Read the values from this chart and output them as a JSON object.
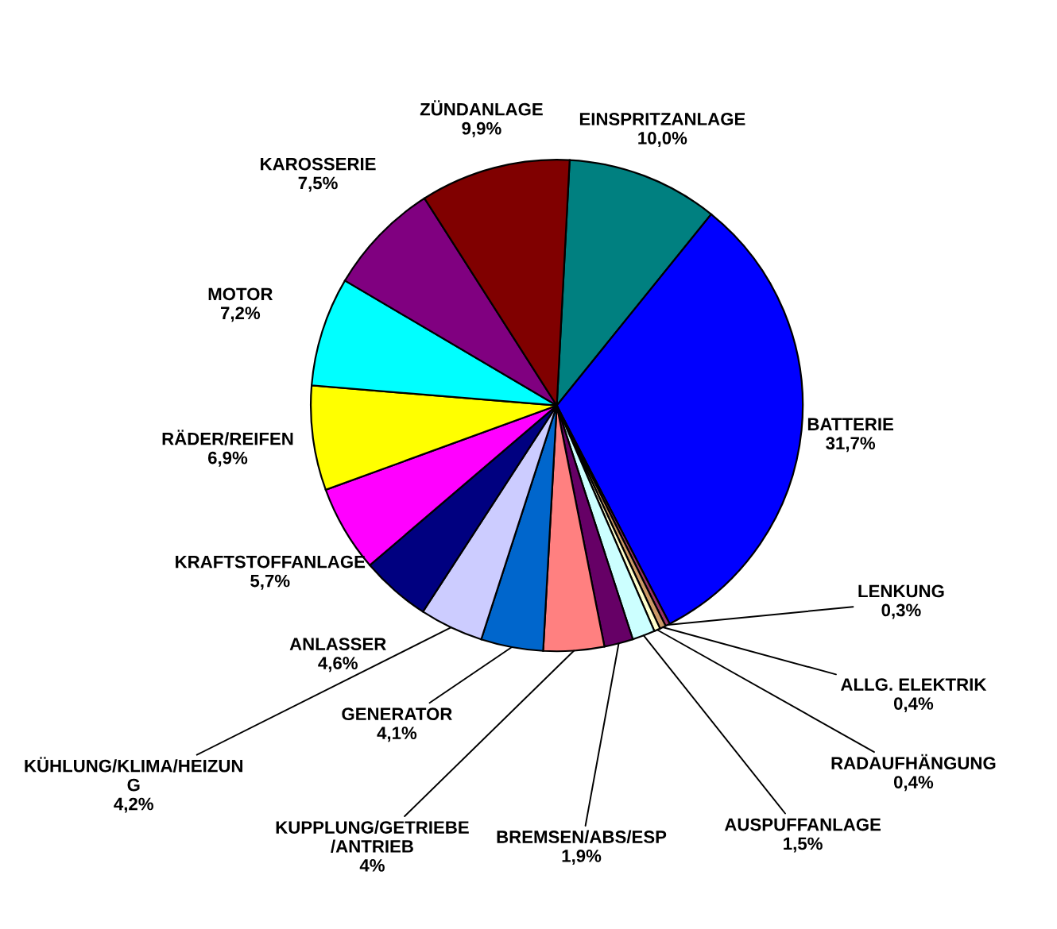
{
  "chart_data": {
    "type": "pie",
    "categories": [
      "EINSPRITZANLAGE",
      "BATTERIE",
      "LENKUNG",
      "ALLG. ELEKTRIK",
      "RADAUFHÄNGUNG",
      "AUSPUFFANLAGE",
      "BREMSEN/ABS/ESP",
      "KUPPLUNG/GETRIEBE\n/ANTRIEB",
      "GENERATOR",
      "KÜHLUNG/KLIMA/HEIZUN\nG",
      "ANLASSER",
      "KRAFTSTOFFANLAGE",
      "RÄDER/REIFEN",
      "MOTOR",
      "KAROSSERIE",
      "ZÜNDANLAGE"
    ],
    "values": [
      10.0,
      31.7,
      0.3,
      0.4,
      0.4,
      1.5,
      1.9,
      4,
      4.1,
      4.2,
      4.6,
      5.7,
      6.9,
      7.2,
      7.5,
      9.9
    ],
    "value_labels": [
      "10,0%",
      "31,7%",
      "0,3%",
      "0,4%",
      "0,4%",
      "1,5%",
      "1,9%",
      "4%",
      "4,1%",
      "4,2%",
      "4,6%",
      "5,7%",
      "6,9%",
      "7,2%",
      "7,5%",
      "9,9%"
    ],
    "colors": [
      "#008080",
      "#0000ff",
      "#993366",
      "#cc9966",
      "#ffffcc",
      "#ccffff",
      "#660066",
      "#ff8080",
      "#0066cc",
      "#ccccff",
      "#000080",
      "#ff00ff",
      "#ffff00",
      "#00ffff",
      "#800080",
      "#800000"
    ]
  }
}
